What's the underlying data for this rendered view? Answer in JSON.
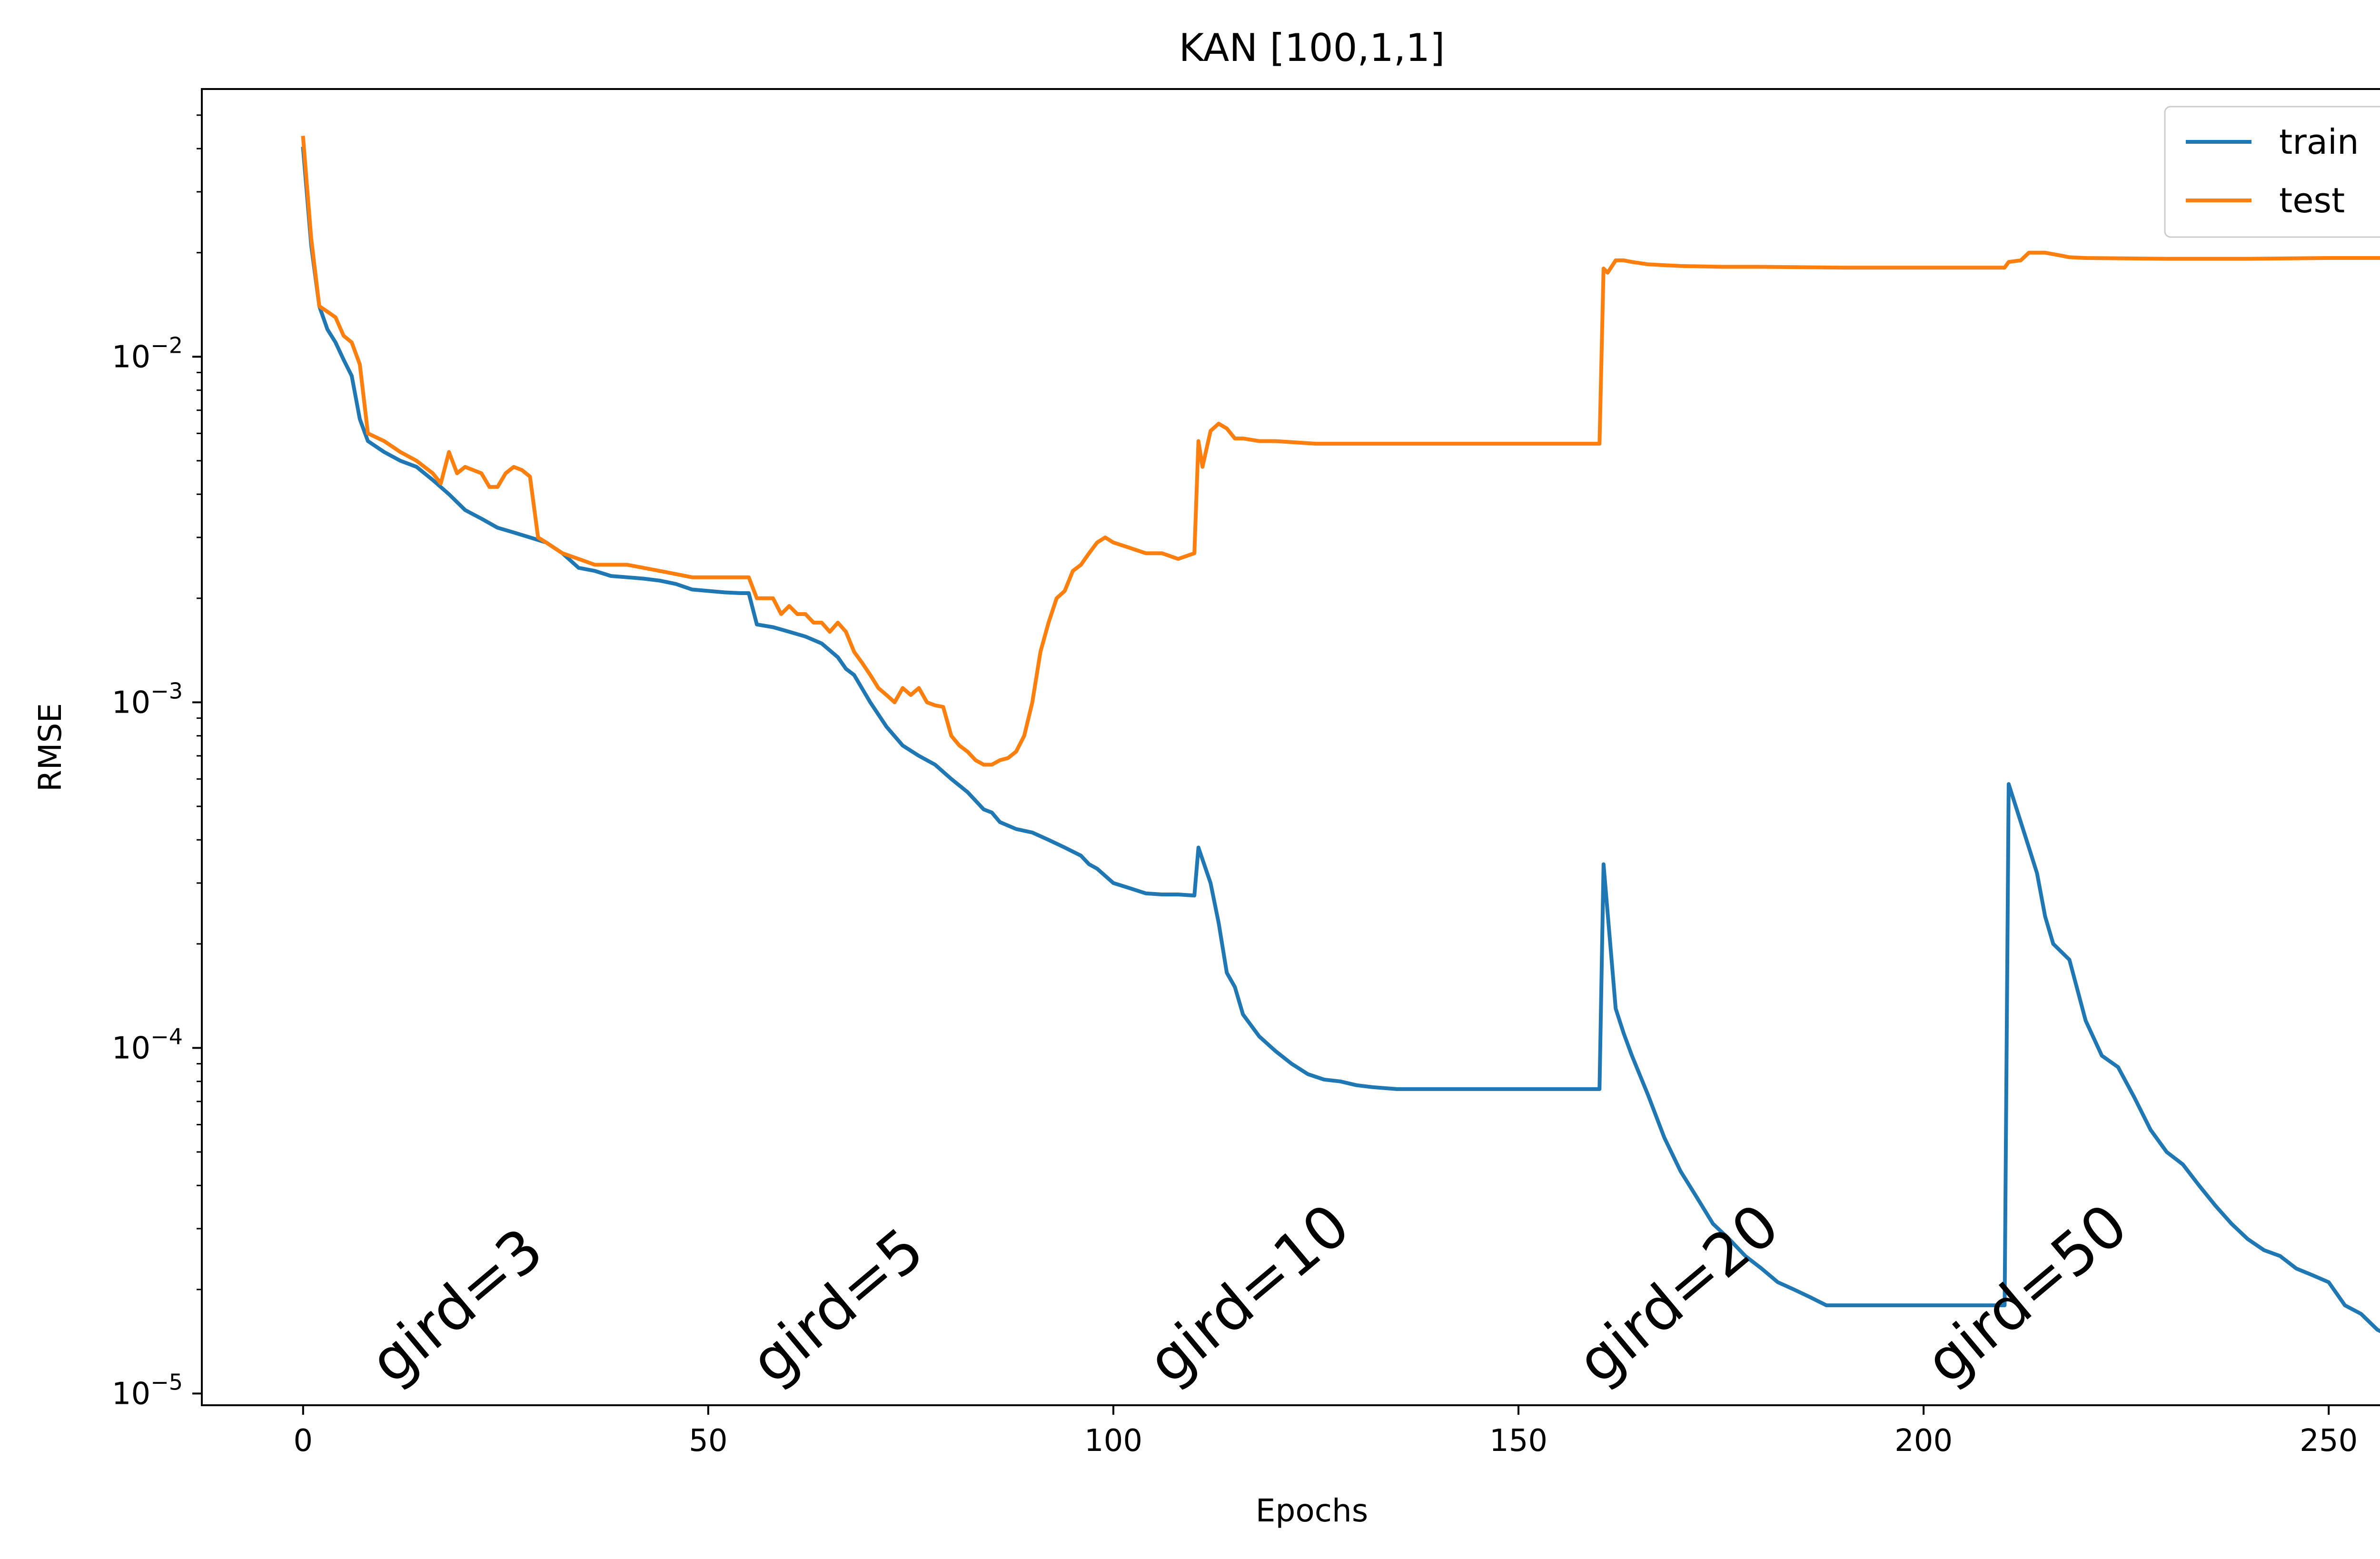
{
  "chart_data": {
    "type": "line",
    "title": "KAN [100,1,1]",
    "xlabel": "Epochs",
    "ylabel": "RMSE",
    "xlim": [
      -12.5,
      261.5
    ],
    "ylim": [
      9.25e-06,
      0.0595
    ],
    "yscale": "log",
    "grid": false,
    "legend_position": "top-right",
    "x_ticks": [
      0,
      50,
      100,
      150,
      200,
      250
    ],
    "y_ticks": [
      {
        "value": 1e-05,
        "base": "10",
        "exp": "−5"
      },
      {
        "value": 0.0001,
        "base": "10",
        "exp": "−4"
      },
      {
        "value": 0.001,
        "base": "10",
        "exp": "−3"
      },
      {
        "value": 0.01,
        "base": "10",
        "exp": "−2"
      }
    ],
    "annotations": [
      {
        "text": "gird=3",
        "x": 11,
        "y": 1.05e-05
      },
      {
        "text": "gird=5",
        "x": 58,
        "y": 1.05e-05
      },
      {
        "text": "gird=10",
        "x": 107,
        "y": 1.05e-05
      },
      {
        "text": "gird=20",
        "x": 160,
        "y": 1.05e-05
      },
      {
        "text": "gird=50",
        "x": 203,
        "y": 1.05e-05
      }
    ],
    "series": [
      {
        "name": "train",
        "color": "#1f77b4",
        "points": [
          [
            0,
            0.04
          ],
          [
            1,
            0.021
          ],
          [
            2,
            0.014
          ],
          [
            3,
            0.012
          ],
          [
            4,
            0.011
          ],
          [
            5,
            0.0098
          ],
          [
            6,
            0.0088
          ],
          [
            7,
            0.0066
          ],
          [
            8,
            0.0057
          ],
          [
            10,
            0.0053
          ],
          [
            12,
            0.005
          ],
          [
            14,
            0.0048
          ],
          [
            16,
            0.0044
          ],
          [
            18,
            0.004
          ],
          [
            20,
            0.0036
          ],
          [
            22,
            0.0034
          ],
          [
            24,
            0.0032
          ],
          [
            26,
            0.0031
          ],
          [
            28,
            0.003
          ],
          [
            30,
            0.0029
          ],
          [
            32,
            0.0027
          ],
          [
            34,
            0.00245
          ],
          [
            36,
            0.0024
          ],
          [
            38,
            0.00232
          ],
          [
            40,
            0.0023
          ],
          [
            42,
            0.00228
          ],
          [
            44,
            0.00225
          ],
          [
            46,
            0.0022
          ],
          [
            48,
            0.00212
          ],
          [
            50,
            0.0021
          ],
          [
            52,
            0.00208
          ],
          [
            54,
            0.00207
          ],
          [
            55,
            0.00207
          ],
          [
            56,
            0.00168
          ],
          [
            58,
            0.00165
          ],
          [
            60,
            0.0016
          ],
          [
            62,
            0.00155
          ],
          [
            64,
            0.00148
          ],
          [
            66,
            0.00135
          ],
          [
            67,
            0.00125
          ],
          [
            68,
            0.0012
          ],
          [
            70,
            0.001
          ],
          [
            72,
            0.00085
          ],
          [
            74,
            0.00075
          ],
          [
            76,
            0.0007
          ],
          [
            78,
            0.00066
          ],
          [
            80,
            0.0006
          ],
          [
            82,
            0.00055
          ],
          [
            84,
            0.00049
          ],
          [
            85,
            0.00048
          ],
          [
            86,
            0.00045
          ],
          [
            88,
            0.00043
          ],
          [
            90,
            0.00042
          ],
          [
            92,
            0.0004
          ],
          [
            94,
            0.00038
          ],
          [
            96,
            0.00036
          ],
          [
            97,
            0.00034
          ],
          [
            98,
            0.00033
          ],
          [
            100,
            0.0003
          ],
          [
            102,
            0.00029
          ],
          [
            104,
            0.00028
          ],
          [
            106,
            0.000278
          ],
          [
            108,
            0.000278
          ],
          [
            110,
            0.000276
          ],
          [
            110.5,
            0.00038
          ],
          [
            112,
            0.0003
          ],
          [
            113,
            0.00023
          ],
          [
            114,
            0.000165
          ],
          [
            115,
            0.00015
          ],
          [
            116,
            0.000125
          ],
          [
            118,
            0.000108
          ],
          [
            120,
            9.8e-05
          ],
          [
            122,
            9e-05
          ],
          [
            124,
            8.4e-05
          ],
          [
            126,
            8.1e-05
          ],
          [
            128,
            8e-05
          ],
          [
            130,
            7.8e-05
          ],
          [
            132,
            7.7e-05
          ],
          [
            135,
            7.6e-05
          ],
          [
            140,
            7.6e-05
          ],
          [
            150,
            7.6e-05
          ],
          [
            160,
            7.6e-05
          ],
          [
            160.5,
            0.00034
          ],
          [
            162,
            0.00013
          ],
          [
            163,
            0.00011
          ],
          [
            164,
            9.5e-05
          ],
          [
            166,
            7.3e-05
          ],
          [
            168,
            5.5e-05
          ],
          [
            170,
            4.4e-05
          ],
          [
            172,
            3.7e-05
          ],
          [
            174,
            3.1e-05
          ],
          [
            176,
            2.8e-05
          ],
          [
            178,
            2.5e-05
          ],
          [
            180,
            2.3e-05
          ],
          [
            182,
            2.1e-05
          ],
          [
            184,
            2e-05
          ],
          [
            186,
            1.9e-05
          ],
          [
            188,
            1.8e-05
          ],
          [
            190,
            1.8e-05
          ],
          [
            200,
            1.8e-05
          ],
          [
            210,
            1.8e-05
          ],
          [
            210.5,
            0.00058
          ],
          [
            212,
            0.00045
          ],
          [
            213,
            0.00038
          ],
          [
            214,
            0.00032
          ],
          [
            215,
            0.00024
          ],
          [
            216,
            0.0002
          ],
          [
            218,
            0.00018
          ],
          [
            220,
            0.00012
          ],
          [
            222,
            9.5e-05
          ],
          [
            224,
            8.8e-05
          ],
          [
            226,
            7.2e-05
          ],
          [
            228,
            5.8e-05
          ],
          [
            230,
            5e-05
          ],
          [
            232,
            4.6e-05
          ],
          [
            234,
            4e-05
          ],
          [
            236,
            3.5e-05
          ],
          [
            238,
            3.1e-05
          ],
          [
            240,
            2.8e-05
          ],
          [
            242,
            2.6e-05
          ],
          [
            244,
            2.5e-05
          ],
          [
            246,
            2.3e-05
          ],
          [
            248,
            2.2e-05
          ],
          [
            250,
            2.1e-05
          ],
          [
            252,
            1.8e-05
          ],
          [
            254,
            1.7e-05
          ],
          [
            256,
            1.53e-05
          ],
          [
            258,
            1.45e-05
          ],
          [
            259,
            1.38e-05
          ]
        ]
      },
      {
        "name": "test",
        "color": "#ff7f0e",
        "points": [
          [
            0,
            0.043
          ],
          [
            1,
            0.022
          ],
          [
            2,
            0.014
          ],
          [
            3,
            0.0135
          ],
          [
            4,
            0.013
          ],
          [
            5,
            0.0115
          ],
          [
            6,
            0.011
          ],
          [
            7,
            0.0095
          ],
          [
            8,
            0.006
          ],
          [
            10,
            0.0057
          ],
          [
            12,
            0.0053
          ],
          [
            14,
            0.005
          ],
          [
            16,
            0.0046
          ],
          [
            17,
            0.0043
          ],
          [
            18,
            0.0053
          ],
          [
            19,
            0.0046
          ],
          [
            20,
            0.0048
          ],
          [
            22,
            0.0046
          ],
          [
            23,
            0.0042
          ],
          [
            24,
            0.0042
          ],
          [
            25,
            0.0046
          ],
          [
            26,
            0.0048
          ],
          [
            27,
            0.0047
          ],
          [
            28,
            0.0045
          ],
          [
            29,
            0.003
          ],
          [
            30,
            0.0029
          ],
          [
            32,
            0.0027
          ],
          [
            34,
            0.0026
          ],
          [
            36,
            0.0025
          ],
          [
            38,
            0.0025
          ],
          [
            40,
            0.0025
          ],
          [
            42,
            0.00245
          ],
          [
            44,
            0.0024
          ],
          [
            46,
            0.00235
          ],
          [
            48,
            0.0023
          ],
          [
            50,
            0.0023
          ],
          [
            52,
            0.0023
          ],
          [
            55,
            0.0023
          ],
          [
            56,
            0.002
          ],
          [
            58,
            0.002
          ],
          [
            59,
            0.0018
          ],
          [
            60,
            0.0019
          ],
          [
            61,
            0.0018
          ],
          [
            62,
            0.0018
          ],
          [
            63,
            0.0017
          ],
          [
            64,
            0.0017
          ],
          [
            65,
            0.0016
          ],
          [
            66,
            0.0017
          ],
          [
            67,
            0.0016
          ],
          [
            68,
            0.0014
          ],
          [
            69,
            0.0013
          ],
          [
            70,
            0.0012
          ],
          [
            71,
            0.0011
          ],
          [
            72,
            0.00105
          ],
          [
            73,
            0.001
          ],
          [
            74,
            0.0011
          ],
          [
            75,
            0.00105
          ],
          [
            76,
            0.0011
          ],
          [
            77,
            0.001
          ],
          [
            78,
            0.00098
          ],
          [
            79,
            0.00097
          ],
          [
            80,
            0.0008
          ],
          [
            81,
            0.00075
          ],
          [
            82,
            0.00072
          ],
          [
            83,
            0.00068
          ],
          [
            84,
            0.00066
          ],
          [
            85,
            0.00066
          ],
          [
            86,
            0.00068
          ],
          [
            87,
            0.00069
          ],
          [
            88,
            0.00072
          ],
          [
            89,
            0.0008
          ],
          [
            90,
            0.001
          ],
          [
            91,
            0.0014
          ],
          [
            92,
            0.0017
          ],
          [
            93,
            0.002
          ],
          [
            94,
            0.0021
          ],
          [
            95,
            0.0024
          ],
          [
            96,
            0.0025
          ],
          [
            97,
            0.0027
          ],
          [
            98,
            0.0029
          ],
          [
            99,
            0.003
          ],
          [
            100,
            0.0029
          ],
          [
            102,
            0.0028
          ],
          [
            104,
            0.0027
          ],
          [
            106,
            0.0027
          ],
          [
            108,
            0.0026
          ],
          [
            110,
            0.0027
          ],
          [
            110.5,
            0.0057
          ],
          [
            111,
            0.0048
          ],
          [
            112,
            0.0061
          ],
          [
            113,
            0.0064
          ],
          [
            114,
            0.0062
          ],
          [
            115,
            0.0058
          ],
          [
            116,
            0.0058
          ],
          [
            118,
            0.0057
          ],
          [
            120,
            0.0057
          ],
          [
            125,
            0.0056
          ],
          [
            130,
            0.0056
          ],
          [
            140,
            0.0056
          ],
          [
            150,
            0.0056
          ],
          [
            160,
            0.0056
          ],
          [
            160.5,
            0.018
          ],
          [
            161,
            0.0175
          ],
          [
            162,
            0.019
          ],
          [
            163,
            0.019
          ],
          [
            164,
            0.0188
          ],
          [
            166,
            0.0185
          ],
          [
            168,
            0.0184
          ],
          [
            170,
            0.0183
          ],
          [
            175,
            0.0182
          ],
          [
            180,
            0.0182
          ],
          [
            190,
            0.0181
          ],
          [
            200,
            0.0181
          ],
          [
            210,
            0.0181
          ],
          [
            210.5,
            0.0188
          ],
          [
            212,
            0.019
          ],
          [
            213,
            0.02
          ],
          [
            214,
            0.02
          ],
          [
            215,
            0.02
          ],
          [
            216,
            0.0198
          ],
          [
            217,
            0.0196
          ],
          [
            218,
            0.0194
          ],
          [
            220,
            0.0193
          ],
          [
            230,
            0.0192
          ],
          [
            240,
            0.0192
          ],
          [
            250,
            0.0193
          ],
          [
            259,
            0.0193
          ]
        ]
      }
    ]
  }
}
